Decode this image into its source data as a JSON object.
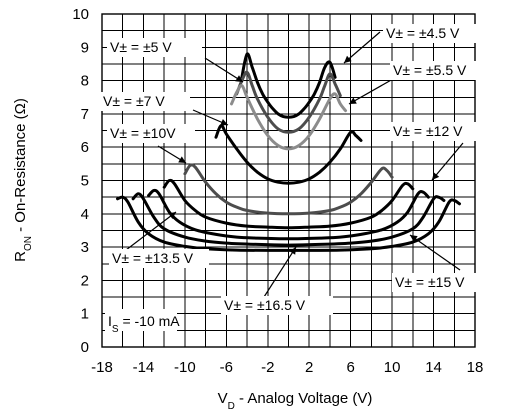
{
  "chart_data": {
    "type": "line",
    "xlabel": "V_D - Analog Voltage (V)",
    "ylabel": "R_ON - On-Resistance (Ω)",
    "x_ticks": [
      -18,
      -14,
      -10,
      -6,
      -2,
      2,
      6,
      10,
      14,
      18
    ],
    "y_ticks": [
      0,
      1,
      2,
      3,
      4,
      5,
      6,
      7,
      8,
      9,
      10
    ],
    "xlim": [
      -18,
      18
    ],
    "ylim": [
      0,
      10
    ],
    "grid": true,
    "condition_label": "I_S = -10 mA",
    "series": [
      {
        "name": "V± = ±4.5 V",
        "color": "#000000",
        "x": [
          -4.5,
          -4.0,
          -3.5,
          -3.0,
          -2.5,
          -2.0,
          -1.5,
          -1.0,
          -0.5,
          0,
          0.5,
          1.0,
          1.5,
          2.0,
          2.5,
          3.0,
          3.5,
          4.0,
          4.5
        ],
        "y": [
          8.1,
          8.8,
          8.4,
          7.95,
          7.6,
          7.35,
          7.15,
          7.0,
          6.92,
          6.9,
          6.92,
          7.0,
          7.15,
          7.35,
          7.6,
          7.95,
          8.4,
          8.55,
          8.1
        ]
      },
      {
        "name": "V± = ±5 V",
        "color": "#4d4d4d",
        "x": [
          -5.0,
          -4.5,
          -4.0,
          -3.5,
          -3.0,
          -2.0,
          -1.0,
          0,
          1.0,
          2.0,
          3.0,
          3.5,
          4.0,
          4.5,
          5.0
        ],
        "y": [
          7.6,
          8.0,
          8.25,
          7.85,
          7.45,
          6.9,
          6.55,
          6.45,
          6.55,
          6.9,
          7.45,
          7.85,
          8.2,
          7.9,
          7.55
        ]
      },
      {
        "name": "V± = ±5.5 V",
        "color": "#8c8c8c",
        "x": [
          -5.5,
          -5.0,
          -4.5,
          -4.0,
          -3.0,
          -2.0,
          -1.0,
          0,
          1.0,
          2.0,
          3.0,
          4.0,
          4.5,
          5.0,
          5.5
        ],
        "y": [
          7.3,
          7.65,
          7.85,
          7.5,
          6.85,
          6.35,
          6.05,
          5.95,
          6.05,
          6.35,
          6.85,
          7.45,
          7.6,
          7.3,
          7.1
        ]
      },
      {
        "name": "V± = ±7 V",
        "color": "#000000",
        "x": [
          -7.0,
          -6.5,
          -6.0,
          -5.0,
          -4.0,
          -3.0,
          -2.0,
          -1.0,
          0,
          1.0,
          2.0,
          3.0,
          4.0,
          5.0,
          6.0,
          6.5,
          7.0
        ],
        "y": [
          6.3,
          6.65,
          6.4,
          5.95,
          5.55,
          5.25,
          5.05,
          4.95,
          4.92,
          4.95,
          5.05,
          5.25,
          5.55,
          5.95,
          6.45,
          6.35,
          6.2
        ]
      },
      {
        "name": "V± = ±10V",
        "color": "#4d4d4d",
        "x": [
          -10.0,
          -9.5,
          -9.0,
          -8.0,
          -7.0,
          -6.0,
          -5.0,
          -4.0,
          -2.0,
          0,
          2.0,
          4.0,
          5.0,
          6.0,
          7.0,
          8.0,
          9.0,
          9.5,
          10.0
        ],
        "y": [
          5.2,
          5.45,
          5.4,
          4.95,
          4.6,
          4.35,
          4.2,
          4.1,
          4.02,
          4.0,
          4.02,
          4.1,
          4.2,
          4.35,
          4.6,
          4.95,
          5.35,
          5.3,
          5.1
        ]
      },
      {
        "name": "V± = ±12 V",
        "color": "#000000",
        "x": [
          -12.0,
          -11.5,
          -11.0,
          -10.0,
          -9.0,
          -8.0,
          -6.0,
          -4.0,
          -2.0,
          0,
          2.0,
          4.0,
          6.0,
          8.0,
          9.0,
          10.0,
          11.0,
          11.5,
          12.0
        ],
        "y": [
          4.8,
          5.0,
          4.9,
          4.4,
          4.1,
          3.9,
          3.72,
          3.63,
          3.6,
          3.58,
          3.6,
          3.63,
          3.72,
          3.9,
          4.1,
          4.4,
          4.85,
          4.9,
          4.75
        ]
      },
      {
        "name": "V± = ±13.5 V",
        "color": "#000000",
        "x": [
          -13.5,
          -13.0,
          -12.5,
          -11.5,
          -10.5,
          -9.0,
          -7.0,
          -5.0,
          -3.0,
          0,
          3.0,
          5.0,
          7.0,
          9.0,
          10.5,
          11.5,
          12.5,
          13.0,
          13.5
        ],
        "y": [
          4.55,
          4.7,
          4.6,
          4.05,
          3.75,
          3.52,
          3.38,
          3.3,
          3.27,
          3.25,
          3.27,
          3.3,
          3.38,
          3.52,
          3.75,
          4.05,
          4.6,
          4.65,
          4.5
        ]
      },
      {
        "name": "V± = ±15 V",
        "color": "#000000",
        "x": [
          -15.0,
          -14.5,
          -14.0,
          -13.0,
          -12.0,
          -10.0,
          -8.0,
          -6.0,
          -3.0,
          0,
          3.0,
          6.0,
          8.0,
          10.0,
          12.0,
          13.0,
          14.0,
          14.5,
          15.0
        ],
        "y": [
          4.45,
          4.6,
          4.45,
          3.9,
          3.55,
          3.3,
          3.18,
          3.12,
          3.08,
          3.06,
          3.08,
          3.12,
          3.18,
          3.3,
          3.55,
          3.9,
          4.45,
          4.5,
          4.4
        ]
      },
      {
        "name": "V± = ±16.5 V",
        "color": "#000000",
        "x": [
          -16.5,
          -16.0,
          -15.5,
          -14.5,
          -13.5,
          -12.0,
          -10.0,
          -8.0,
          -5.0,
          0,
          5.0,
          8.0,
          10.0,
          12.0,
          13.5,
          14.5,
          15.5,
          16.0,
          16.5
        ],
        "y": [
          4.45,
          4.5,
          4.35,
          3.75,
          3.4,
          3.15,
          3.02,
          2.95,
          2.91,
          2.9,
          2.91,
          2.95,
          3.02,
          3.15,
          3.4,
          3.75,
          4.35,
          4.4,
          4.3
        ]
      }
    ]
  }
}
